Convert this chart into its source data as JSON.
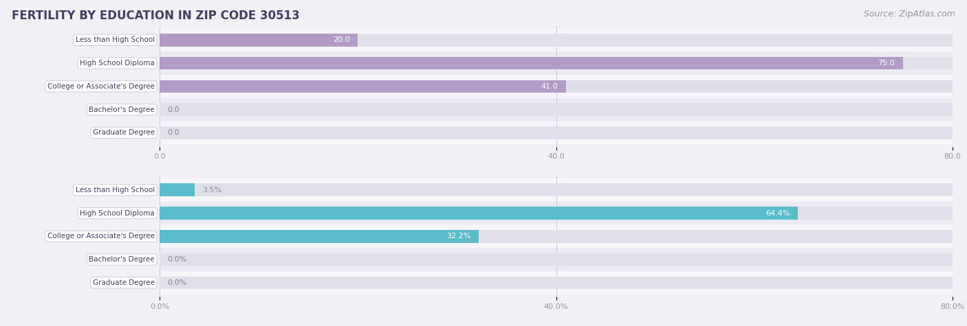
{
  "title": "FERTILITY BY EDUCATION IN ZIP CODE 30513",
  "source": "Source: ZipAtlas.com",
  "top_chart": {
    "categories": [
      "Less than High School",
      "High School Diploma",
      "College or Associate's Degree",
      "Bachelor's Degree",
      "Graduate Degree"
    ],
    "values": [
      20.0,
      75.0,
      41.0,
      0.0,
      0.0
    ],
    "bar_color": "#b39bc8",
    "xlim": [
      0,
      80
    ],
    "xticks": [
      0.0,
      40.0,
      80.0
    ],
    "xtick_labels": [
      "0.0",
      "40.0",
      "80.0"
    ],
    "value_labels": [
      "20.0",
      "75.0",
      "41.0",
      "0.0",
      "0.0"
    ]
  },
  "bottom_chart": {
    "categories": [
      "Less than High School",
      "High School Diploma",
      "College or Associate's Degree",
      "Bachelor's Degree",
      "Graduate Degree"
    ],
    "values": [
      3.5,
      64.4,
      32.2,
      0.0,
      0.0
    ],
    "bar_color": "#5bbccc",
    "xlim": [
      0,
      80
    ],
    "xticks": [
      0.0,
      40.0,
      80.0
    ],
    "xtick_labels": [
      "0.0%",
      "40.0%",
      "80.0%"
    ],
    "value_labels": [
      "3.5%",
      "64.4%",
      "32.2%",
      "0.0%",
      "0.0%"
    ]
  },
  "bg_color": "#f0f0f5",
  "bar_bg_color": "#e0e0ea",
  "label_bg_color": "#ffffff",
  "title_color": "#404060",
  "source_color": "#999999",
  "tick_color": "#999999",
  "value_color_inside": "#ffffff",
  "value_color_outside": "#888888",
  "cat_label_color": "#404060",
  "title_fontsize": 12,
  "source_fontsize": 9,
  "label_fontsize": 7.5,
  "value_fontsize": 8,
  "tick_fontsize": 8,
  "bar_height": 0.55,
  "row_colors": [
    "#f5f5fa",
    "#eaeaf2"
  ]
}
